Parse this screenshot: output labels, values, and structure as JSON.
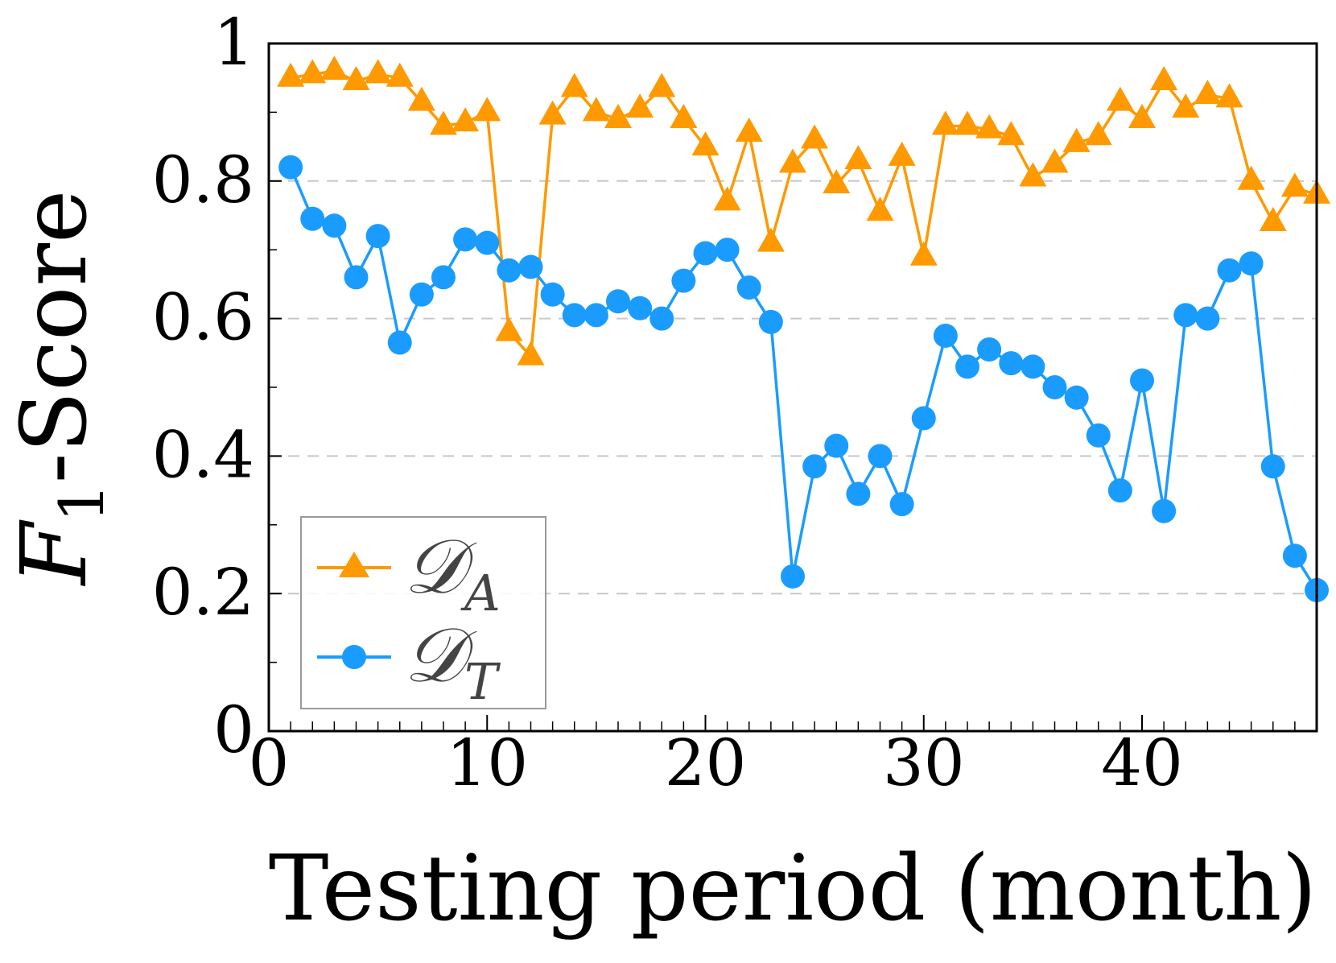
{
  "chart_data": {
    "type": "line",
    "xlabel": "Testing period (month)",
    "ylabel": {
      "main": "F",
      "sub": "1",
      "rest": "-Score"
    },
    "xlim": [
      0,
      48
    ],
    "ylim": [
      0,
      1
    ],
    "xticks": [
      0,
      10,
      20,
      30,
      40
    ],
    "yticks": [
      0,
      0.2,
      0.4,
      0.6,
      0.8,
      1
    ],
    "ytick_labels": [
      "0",
      "0.2",
      "0.4",
      "0.6",
      "0.8",
      "1"
    ],
    "grid": "horizontal dashed",
    "legend": "bottom-left",
    "series": [
      {
        "name": "𝒟",
        "subscript": "A",
        "color": "#ff9900",
        "marker": "triangle",
        "x": [
          1,
          2,
          3,
          4,
          5,
          6,
          7,
          8,
          9,
          10,
          11,
          12,
          13,
          14,
          15,
          16,
          17,
          18,
          19,
          20,
          21,
          22,
          23,
          24,
          25,
          26,
          27,
          28,
          29,
          30,
          31,
          32,
          33,
          34,
          35,
          36,
          37,
          38,
          39,
          40,
          41,
          42,
          43,
          44,
          45,
          46,
          47,
          48
        ],
        "values": [
          0.95,
          0.955,
          0.96,
          0.945,
          0.955,
          0.95,
          0.915,
          0.88,
          0.885,
          0.9,
          0.58,
          0.545,
          0.895,
          0.935,
          0.9,
          0.89,
          0.905,
          0.935,
          0.89,
          0.85,
          0.77,
          0.87,
          0.71,
          0.825,
          0.86,
          0.795,
          0.83,
          0.755,
          0.835,
          0.69,
          0.88,
          0.88,
          0.875,
          0.865,
          0.805,
          0.825,
          0.855,
          0.865,
          0.915,
          0.89,
          0.945,
          0.905,
          0.925,
          0.92,
          0.8,
          0.74,
          0.79,
          0.78
        ]
      },
      {
        "name": "𝒟",
        "subscript": "T",
        "color": "#1a9cff",
        "marker": "circle",
        "x": [
          1,
          2,
          3,
          4,
          5,
          6,
          7,
          8,
          9,
          10,
          11,
          12,
          13,
          14,
          15,
          16,
          17,
          18,
          19,
          20,
          21,
          22,
          23,
          24,
          25,
          26,
          27,
          28,
          29,
          30,
          31,
          32,
          33,
          34,
          35,
          36,
          37,
          38,
          39,
          40,
          41,
          42,
          43,
          44,
          45,
          46,
          47,
          48
        ],
        "values": [
          0.82,
          0.745,
          0.735,
          0.66,
          0.72,
          0.565,
          0.635,
          0.66,
          0.715,
          0.71,
          0.67,
          0.675,
          0.635,
          0.605,
          0.605,
          0.625,
          0.615,
          0.6,
          0.655,
          0.695,
          0.7,
          0.645,
          0.595,
          0.225,
          0.385,
          0.415,
          0.345,
          0.4,
          0.33,
          0.455,
          0.575,
          0.53,
          0.555,
          0.535,
          0.53,
          0.5,
          0.485,
          0.43,
          0.35,
          0.51,
          0.32,
          0.605,
          0.6,
          0.67,
          0.68,
          0.385,
          0.255,
          0.205
        ]
      }
    ]
  }
}
